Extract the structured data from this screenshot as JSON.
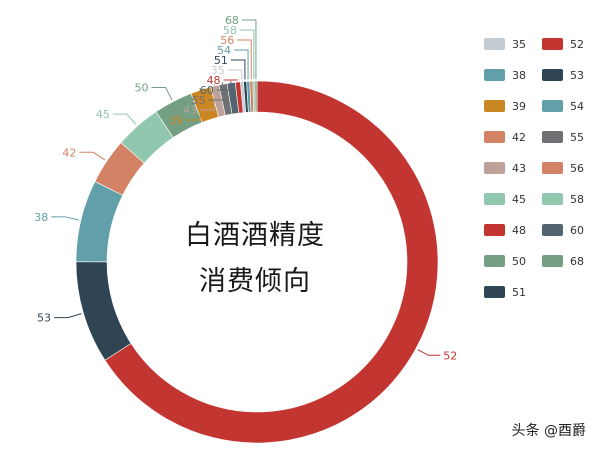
{
  "chart_data": {
    "type": "pie",
    "donut": true,
    "title_line1": "白酒酒精度",
    "title_line2": "消费倾向",
    "slices": [
      {
        "label": "52",
        "value": 72.0,
        "color": "#c23531"
      },
      {
        "label": "53",
        "value": 10.0,
        "color": "#2f4554"
      },
      {
        "label": "38",
        "value": 8.0,
        "color": "#61a0a8"
      },
      {
        "label": "42",
        "value": 4.5,
        "color": "#d48265"
      },
      {
        "label": "45",
        "value": 4.5,
        "color": "#91c7ae"
      },
      {
        "label": "50",
        "value": 3.8,
        "color": "#749f83"
      },
      {
        "label": "39",
        "value": 2.0,
        "color": "#ca8622"
      },
      {
        "label": "43",
        "value": 0.8,
        "color": "#bda29a"
      },
      {
        "label": "55",
        "value": 0.8,
        "color": "#6e7074"
      },
      {
        "label": "60",
        "value": 0.8,
        "color": "#546570"
      },
      {
        "label": "48",
        "value": 0.5,
        "color": "#c23531"
      },
      {
        "label": "35",
        "value": 0.3,
        "color": "#c4ccd3"
      },
      {
        "label": "51",
        "value": 0.3,
        "color": "#2f4554"
      },
      {
        "label": "54",
        "value": 0.3,
        "color": "#61a0a8"
      },
      {
        "label": "56",
        "value": 0.3,
        "color": "#d48265"
      },
      {
        "label": "58",
        "value": 0.2,
        "color": "#91c7ae"
      },
      {
        "label": "68",
        "value": 0.2,
        "color": "#749f83"
      }
    ],
    "legend": {
      "placement": "right",
      "items": [
        {
          "label": "35",
          "color": "#c4ccd3"
        },
        {
          "label": "52",
          "color": "#c23531"
        },
        {
          "label": "38",
          "color": "#61a0a8"
        },
        {
          "label": "53",
          "color": "#2f4554"
        },
        {
          "label": "39",
          "color": "#ca8622"
        },
        {
          "label": "54",
          "color": "#61a0a8"
        },
        {
          "label": "42",
          "color": "#d48265"
        },
        {
          "label": "55",
          "color": "#6e7074"
        },
        {
          "label": "43",
          "color": "#bda29a"
        },
        {
          "label": "56",
          "color": "#d48265"
        },
        {
          "label": "45",
          "color": "#91c7ae"
        },
        {
          "label": "58",
          "color": "#91c7ae"
        },
        {
          "label": "48",
          "color": "#c23531"
        },
        {
          "label": "60",
          "color": "#546570"
        },
        {
          "label": "50",
          "color": "#749f83"
        },
        {
          "label": "68",
          "color": "#749f83"
        },
        {
          "label": "51",
          "color": "#2f4554"
        }
      ]
    }
  },
  "watermark": "头条 @酉爵"
}
